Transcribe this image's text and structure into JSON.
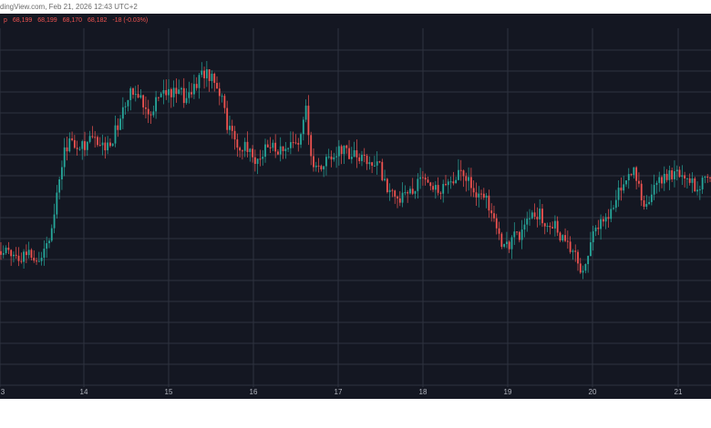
{
  "source_line": "dingView.com, Feb 21, 2026 12:43 UTC+2",
  "ohlc": {
    "label_fragment": "p",
    "open": "68,199",
    "high": "68,199",
    "low": "68,170",
    "close": "68,182",
    "change": "-18 (-0.03%)"
  },
  "colors": {
    "background": "#141722",
    "grid": "#2e3340",
    "up": "#26a69a",
    "down": "#ef5350",
    "text": "#b2b5be"
  },
  "chart_data": {
    "type": "candlestick",
    "x_labels": [
      "3",
      "14",
      "15",
      "16",
      "17",
      "18",
      "19",
      "20",
      "21"
    ],
    "y_range_visual": [
      0,
      1
    ],
    "grid": true,
    "trend": [
      [
        0.0,
        0.29
      ],
      [
        0.03,
        0.28
      ],
      [
        0.06,
        0.28
      ],
      [
        0.07,
        0.35
      ],
      [
        0.09,
        0.63
      ],
      [
        0.12,
        0.64
      ],
      [
        0.15,
        0.63
      ],
      [
        0.16,
        0.66
      ],
      [
        0.18,
        0.79
      ],
      [
        0.19,
        0.81
      ],
      [
        0.21,
        0.74
      ],
      [
        0.23,
        0.81
      ],
      [
        0.26,
        0.78
      ],
      [
        0.28,
        0.85
      ],
      [
        0.3,
        0.86
      ],
      [
        0.31,
        0.8
      ],
      [
        0.32,
        0.68
      ],
      [
        0.34,
        0.62
      ],
      [
        0.36,
        0.59
      ],
      [
        0.38,
        0.62
      ],
      [
        0.4,
        0.61
      ],
      [
        0.42,
        0.63
      ],
      [
        0.43,
        0.75
      ],
      [
        0.44,
        0.55
      ],
      [
        0.46,
        0.58
      ],
      [
        0.48,
        0.62
      ],
      [
        0.5,
        0.59
      ],
      [
        0.53,
        0.57
      ],
      [
        0.56,
        0.44
      ],
      [
        0.59,
        0.52
      ],
      [
        0.62,
        0.49
      ],
      [
        0.65,
        0.55
      ],
      [
        0.67,
        0.48
      ],
      [
        0.69,
        0.43
      ],
      [
        0.71,
        0.29
      ],
      [
        0.73,
        0.35
      ],
      [
        0.76,
        0.41
      ],
      [
        0.78,
        0.37
      ],
      [
        0.8,
        0.3
      ],
      [
        0.82,
        0.23
      ],
      [
        0.84,
        0.37
      ],
      [
        0.86,
        0.42
      ],
      [
        0.88,
        0.51
      ],
      [
        0.89,
        0.56
      ],
      [
        0.91,
        0.42
      ],
      [
        0.92,
        0.5
      ],
      [
        0.94,
        0.54
      ],
      [
        0.96,
        0.53
      ],
      [
        0.98,
        0.5
      ],
      [
        1.0,
        0.52
      ]
    ]
  }
}
